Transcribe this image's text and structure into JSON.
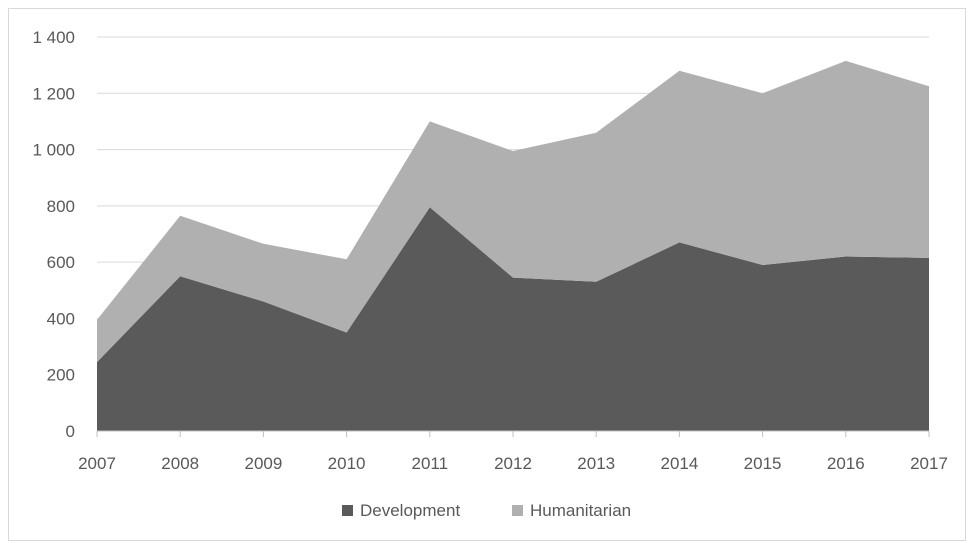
{
  "chart_data": {
    "type": "area",
    "stacked": true,
    "categories": [
      "2007",
      "2008",
      "2009",
      "2010",
      "2011",
      "2012",
      "2013",
      "2014",
      "2015",
      "2016",
      "2017"
    ],
    "series": [
      {
        "name": "Development",
        "color": "#5a5a5a",
        "values": [
          245,
          550,
          460,
          350,
          795,
          545,
          530,
          670,
          590,
          620,
          615
        ]
      },
      {
        "name": "Humanitarian",
        "color": "#b0b0b0",
        "values": [
          150,
          215,
          205,
          260,
          305,
          450,
          530,
          610,
          610,
          695,
          610
        ]
      }
    ],
    "y_ticks": [
      "0",
      "200",
      "400",
      "600",
      "800",
      "1 000",
      "1 200",
      "1 400"
    ],
    "ylim": [
      0,
      1400
    ],
    "grid": true,
    "legend_position": "bottom"
  }
}
